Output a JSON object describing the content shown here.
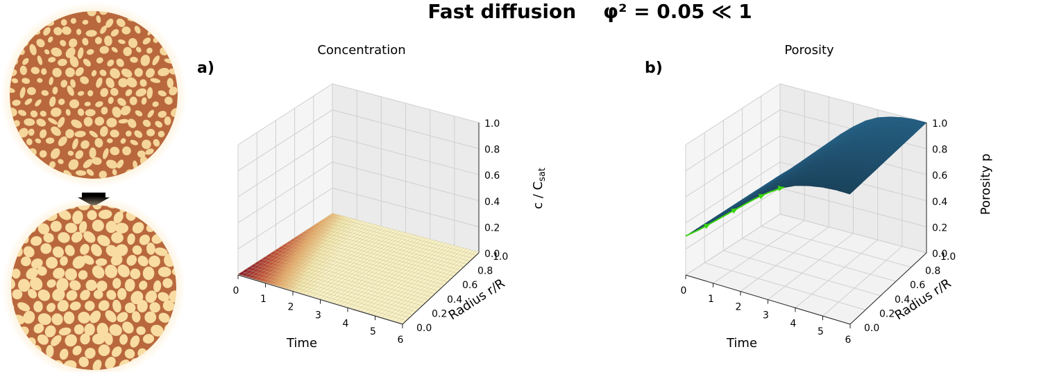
{
  "figure": {
    "title": "Fast diffusion    φ² = 0.05 ≪ 1"
  },
  "chart_data": [
    {
      "type": "surface3d",
      "panel_label": "a)",
      "title": "Concentration",
      "xlabel": "Time",
      "ylabel": "Radius  r/R",
      "zlabel": "c / C",
      "zlabel_sub": "sat",
      "x_ticks": [
        "0",
        "1",
        "2",
        "3",
        "4",
        "5",
        "6"
      ],
      "y_ticks": [
        "0.0",
        "0.2",
        "0.4",
        "0.6",
        "0.8",
        "1.0"
      ],
      "z_ticks": [
        "0.0",
        "0.2",
        "0.4",
        "0.6",
        "0.8",
        "1.0"
      ],
      "xlim": [
        0,
        6
      ],
      "ylim": [
        0,
        1
      ],
      "zlim": [
        0,
        1
      ],
      "surface": "c ≈ 0 across the time–radius domain (flat surface near the floor)",
      "colormap": [
        "#8b1a2f",
        "#c0503a",
        "#e6a86a",
        "#f2e6b0",
        "#f7f0c8"
      ]
    },
    {
      "type": "surface3d",
      "panel_label": "b)",
      "title": "Porosity",
      "xlabel": "Time",
      "ylabel": "Radius  r/R",
      "zlabel": "Porosity  p",
      "x_ticks": [
        "0",
        "1",
        "2",
        "3",
        "4",
        "5",
        "6"
      ],
      "y_ticks": [
        "0.0",
        "0.2",
        "0.4",
        "0.6",
        "0.8",
        "1.0"
      ],
      "z_ticks": [
        "0.0",
        "0.2",
        "0.4",
        "0.6",
        "0.8",
        "1.0"
      ],
      "xlim": [
        0,
        6
      ],
      "ylim": [
        0,
        1
      ],
      "zlim": [
        0,
        1
      ],
      "surface_color": "#235a7c",
      "trajectory_color": "#3ad40f",
      "time_profile": {
        "t": [
          0,
          0.5,
          1,
          1.5,
          2,
          2.5,
          3,
          3.5,
          4,
          4.5,
          5,
          5.5,
          6
        ],
        "p": [
          0.3,
          0.38,
          0.47,
          0.56,
          0.65,
          0.74,
          0.82,
          0.89,
          0.94,
          0.97,
          0.99,
          1.0,
          1.0
        ]
      }
    }
  ],
  "illustrations": {
    "arrow_color": "#000000",
    "glow_color": "#fde9c4",
    "strut_color": "#b8683c",
    "pore_before_color": "#f4d59a",
    "pore_after_color": "#f8dca2"
  }
}
